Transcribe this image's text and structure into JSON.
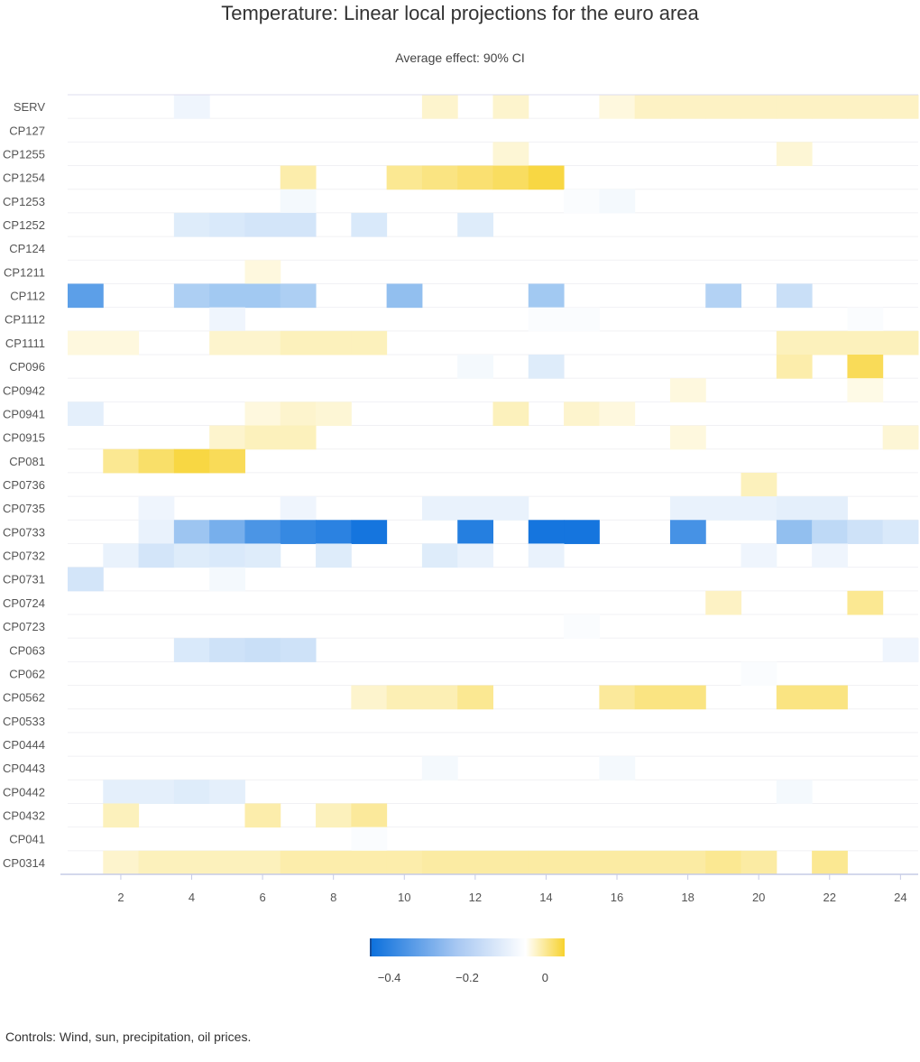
{
  "chart_data": {
    "type": "heatmap",
    "title": "Temperature: Linear local projections for the euro area",
    "subtitle": "Average effect: 90% CI",
    "footnote": "Controls: Wind, sun, precipitation, oil prices.",
    "rows": [
      "SERV",
      "CP127",
      "CP1255",
      "CP1254",
      "CP1253",
      "CP1252",
      "CP124",
      "CP1211",
      "CP112",
      "CP1112",
      "CP1111",
      "CP096",
      "CP0942",
      "CP0941",
      "CP0915",
      "CP081",
      "CP0736",
      "CP0735",
      "CP0733",
      "CP0732",
      "CP0731",
      "CP0724",
      "CP0723",
      "CP063",
      "CP062",
      "CP0562",
      "CP0533",
      "CP0444",
      "CP0443",
      "CP0442",
      "CP0432",
      "CP041",
      "CP0314"
    ],
    "x_ticks": [
      2,
      4,
      6,
      8,
      10,
      12,
      14,
      16,
      18,
      20,
      22,
      24
    ],
    "xlim": [
      1,
      24
    ],
    "color_scale": {
      "min": -0.45,
      "mid": 0,
      "max": 0.05,
      "min_color": "#0a6fdc",
      "mid_color": "#ffffff",
      "max_color": "#f7d22e"
    },
    "legend": {
      "ticks": [
        "−0.4",
        "−0.2",
        "0"
      ],
      "tick_values": [
        -0.4,
        -0.2,
        0
      ]
    },
    "values": {
      "SERV": {
        "4": -0.03,
        "11": 0.012,
        "13": 0.012,
        "16": 0.008,
        "17": 0.014,
        "18": 0.014,
        "19": 0.014,
        "20": 0.014,
        "21": 0.014,
        "22": 0.014,
        "23": 0.014,
        "24": 0.014
      },
      "CP1255": {
        "13": 0.01,
        "21": 0.01
      },
      "CP1254": {
        "7": 0.02,
        "10": 0.026,
        "11": 0.03,
        "12": 0.034,
        "13": 0.038,
        "14": 0.045
      },
      "CP1253": {
        "7": -0.02,
        "15": -0.01,
        "16": -0.02
      },
      "CP1252": {
        "4": -0.06,
        "5": -0.07,
        "6": -0.08,
        "7": -0.08,
        "9": -0.07,
        "12": -0.06
      },
      "CP1211": {
        "6": 0.008
      },
      "CP112": {
        "1": -0.3,
        "4": -0.15,
        "5": -0.17,
        "6": -0.17,
        "7": -0.15,
        "10": -0.2,
        "14": -0.17,
        "19": -0.14,
        "21": -0.1
      },
      "CP1112": {
        "5": -0.03,
        "14": -0.01,
        "15": -0.01,
        "23": -0.01
      },
      "CP1111": {
        "1": 0.008,
        "2": 0.008,
        "5": 0.012,
        "6": 0.012,
        "7": 0.016,
        "8": 0.016,
        "9": 0.016,
        "21": 0.016,
        "22": 0.016,
        "23": 0.016,
        "24": 0.016
      },
      "CP096": {
        "12": -0.02,
        "14": -0.06,
        "21": 0.02,
        "23": 0.04
      },
      "CP0942": {
        "18": 0.008,
        "23": 0.006
      },
      "CP0941": {
        "1": -0.05,
        "6": 0.008,
        "7": 0.012,
        "8": 0.01,
        "13": 0.016,
        "15": 0.012,
        "16": 0.008
      },
      "CP0915": {
        "5": 0.012,
        "6": 0.016,
        "7": 0.016,
        "18": 0.008,
        "24": 0.01
      },
      "CP081": {
        "2": 0.026,
        "3": 0.036,
        "4": 0.045,
        "5": 0.04
      },
      "CP0736": {
        "20": 0.016
      },
      "CP0735": {
        "3": -0.03,
        "7": -0.03,
        "11": -0.04,
        "12": -0.04,
        "13": -0.04,
        "18": -0.04,
        "19": -0.04,
        "20": -0.04,
        "21": -0.05,
        "22": -0.05
      },
      "CP0733": {
        "3": -0.04,
        "4": -0.18,
        "5": -0.25,
        "6": -0.33,
        "7": -0.37,
        "8": -0.39,
        "9": -0.43,
        "12": -0.4,
        "14": -0.43,
        "15": -0.43,
        "18": -0.34,
        "21": -0.2,
        "22": -0.12,
        "23": -0.09,
        "24": -0.07
      },
      "CP0732": {
        "2": -0.04,
        "3": -0.08,
        "4": -0.06,
        "5": -0.07,
        "6": -0.06,
        "8": -0.06,
        "11": -0.06,
        "12": -0.04,
        "14": -0.04,
        "20": -0.03,
        "22": -0.03
      },
      "CP0731": {
        "1": -0.08,
        "5": -0.02
      },
      "CP0724": {
        "19": 0.014,
        "23": 0.026
      },
      "CP0723": {
        "15": -0.01
      },
      "CP063": {
        "4": -0.07,
        "5": -0.09,
        "6": -0.1,
        "7": -0.09,
        "24": -0.03
      },
      "CP062": {
        "20": -0.01
      },
      "CP0562": {
        "9": 0.012,
        "10": 0.018,
        "11": 0.018,
        "12": 0.026,
        "16": 0.024,
        "17": 0.03,
        "18": 0.03,
        "21": 0.03,
        "22": 0.03
      },
      "CP0443": {
        "11": -0.02,
        "16": -0.02
      },
      "CP0442": {
        "2": -0.05,
        "3": -0.05,
        "4": -0.06,
        "5": -0.05,
        "21": -0.02
      },
      "CP0432": {
        "2": 0.016,
        "6": 0.02,
        "8": 0.016,
        "9": 0.024
      },
      "CP041": {
        "9": -0.01
      },
      "CP0314": {
        "2": 0.012,
        "3": 0.016,
        "4": 0.016,
        "5": 0.016,
        "6": 0.016,
        "7": 0.02,
        "8": 0.02,
        "9": 0.02,
        "10": 0.02,
        "11": 0.022,
        "12": 0.022,
        "13": 0.022,
        "14": 0.022,
        "15": 0.022,
        "16": 0.022,
        "17": 0.022,
        "18": 0.022,
        "19": 0.026,
        "20": 0.022,
        "22": 0.026
      }
    }
  }
}
